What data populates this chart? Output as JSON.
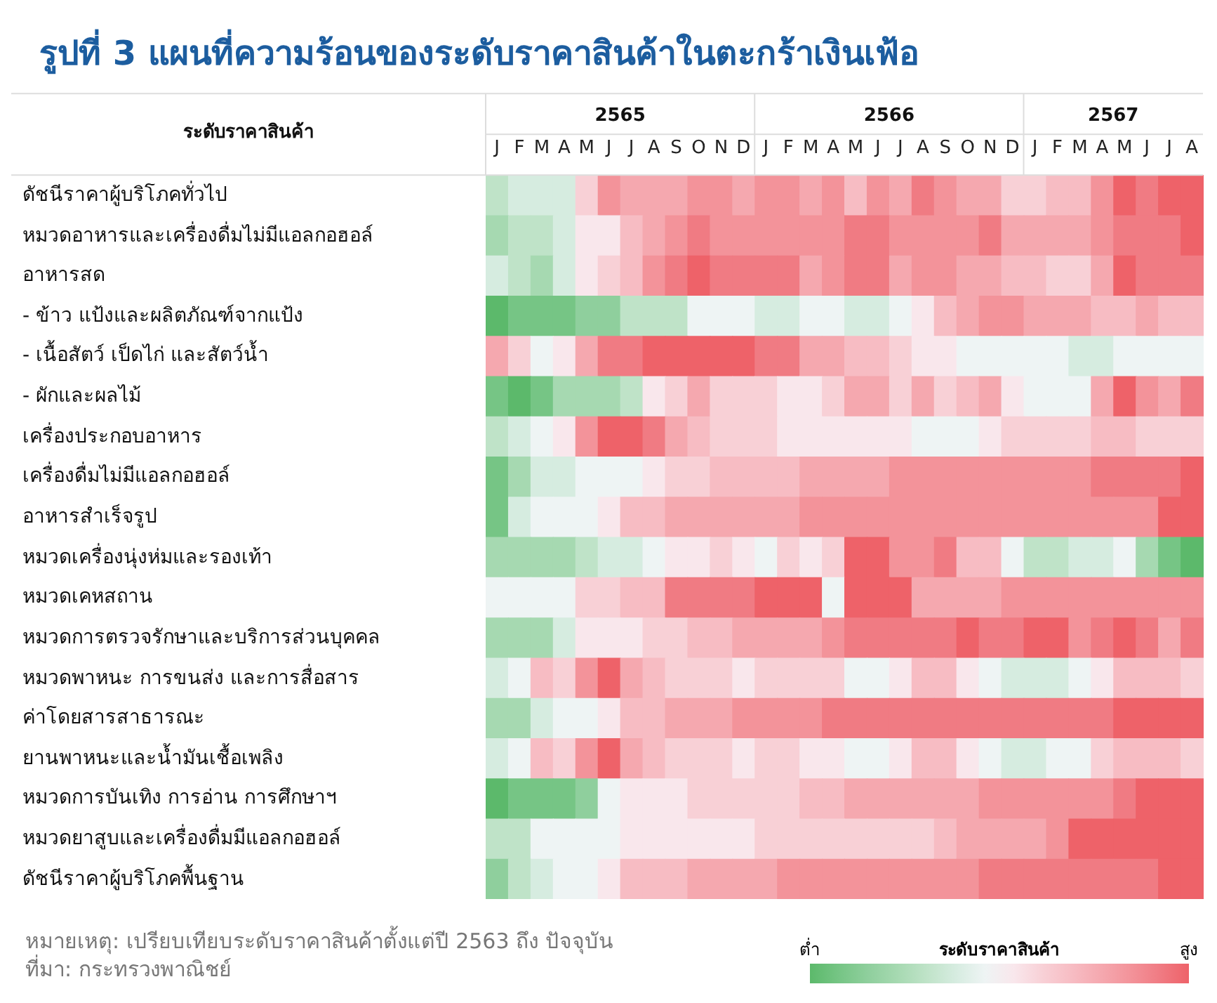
{
  "chart_data": {
    "type": "heatmap",
    "title": "รูปที่ 3 แผนที่ความร้อนของระดับราคาสินค้าในตะกร้าเงินเฟ้อ",
    "ylabel": "ระดับราคาสินค้า",
    "clabel": "ระดับราคาสินค้า",
    "categories": [
      "J",
      "F",
      "M",
      "A",
      "M",
      "J",
      "J",
      "A",
      "S",
      "O",
      "N",
      "D",
      "J",
      "F",
      "M",
      "A",
      "M",
      "J",
      "J",
      "A",
      "S",
      "O",
      "N",
      "D",
      "J",
      "F",
      "M",
      "A",
      "M",
      "J",
      "J",
      "A"
    ],
    "y_categories": [
      "ดัชนีราคาผู้บริโภคทั่วไป",
      "หมวดอาหารและเครื่องดื่มไม่มีแอลกอฮอล์",
      "อาหารสด",
      "- ข้าว แป้งและผลิตภัณฑ์จากแป้ง",
      "- เนื้อสัตว์ เป็ดไก่ และสัตว์น้ำ",
      "- ผักและผลไม้",
      "เครื่องประกอบอาหาร",
      "เครื่องดื่มไม่มีแอลกอฮอล์",
      "อาหารสำเร็จรูป",
      "หมวดเครื่องนุ่งห่มและรองเท้า",
      "หมวดเคหสถาน",
      "หมวดการตรวจรักษาและบริการส่วนบุคคล",
      "หมวดพาหนะ การขนส่ง และการสื่อสาร",
      "ค่าโดยสารสาธารณะ",
      "ยานพาหนะและน้ำมันเชื้อเพลิง",
      "หมวดการบันเทิง การอ่าน การศึกษาฯ",
      "หมวดยาสูบและเครื่องดื่มมีแอลกอฮอล์",
      "ดัชนีราคาผู้บริโภคพื้นฐาน"
    ],
    "cells": [
      [
        5,
        6,
        6,
        6,
        9,
        12,
        11,
        11,
        11,
        12,
        12,
        11,
        12,
        12,
        11,
        12,
        10,
        12,
        11,
        13,
        12,
        11,
        11,
        9,
        9,
        10,
        10,
        12,
        14,
        13,
        14,
        14
      ],
      [
        4,
        5,
        5,
        6,
        8,
        8,
        10,
        11,
        12,
        13,
        12,
        12,
        12,
        12,
        12,
        12,
        13,
        13,
        12,
        12,
        12,
        12,
        13,
        11,
        11,
        11,
        11,
        12,
        13,
        13,
        13,
        14
      ],
      [
        6,
        5,
        4,
        6,
        8,
        9,
        10,
        12,
        13,
        14,
        13,
        13,
        13,
        13,
        11,
        12,
        13,
        13,
        11,
        12,
        12,
        11,
        11,
        10,
        10,
        9,
        9,
        11,
        14,
        13,
        13,
        13
      ],
      [
        1,
        2,
        2,
        2,
        3,
        3,
        5,
        5,
        5,
        7,
        7,
        7,
        6,
        6,
        7,
        7,
        6,
        6,
        7,
        8,
        10,
        11,
        12,
        12,
        11,
        11,
        11,
        10,
        10,
        11,
        10,
        10
      ],
      [
        11,
        9,
        7,
        8,
        11,
        13,
        13,
        14,
        14,
        14,
        14,
        14,
        13,
        13,
        11,
        11,
        10,
        10,
        9,
        8,
        8,
        7,
        7,
        7,
        7,
        7,
        6,
        6,
        7,
        7,
        7,
        7
      ],
      [
        2,
        1,
        2,
        4,
        4,
        4,
        5,
        8,
        9,
        11,
        9,
        9,
        9,
        8,
        8,
        9,
        11,
        11,
        9,
        11,
        9,
        10,
        11,
        8,
        7,
        7,
        7,
        11,
        14,
        12,
        11,
        13
      ],
      [
        5,
        6,
        7,
        8,
        12,
        14,
        14,
        13,
        11,
        10,
        9,
        9,
        9,
        8,
        8,
        8,
        8,
        8,
        8,
        7,
        7,
        7,
        8,
        9,
        9,
        9,
        9,
        10,
        10,
        9,
        9,
        9
      ],
      [
        2,
        4,
        6,
        6,
        7,
        7,
        7,
        8,
        9,
        9,
        10,
        10,
        10,
        10,
        11,
        11,
        11,
        11,
        12,
        12,
        12,
        12,
        12,
        12,
        12,
        12,
        12,
        13,
        13,
        13,
        13,
        14
      ],
      [
        2,
        6,
        7,
        7,
        7,
        8,
        10,
        10,
        11,
        11,
        11,
        11,
        11,
        11,
        12,
        12,
        12,
        12,
        12,
        12,
        12,
        12,
        12,
        12,
        12,
        12,
        12,
        12,
        12,
        12,
        14,
        14
      ],
      [
        4,
        4,
        4,
        4,
        5,
        6,
        6,
        7,
        8,
        8,
        9,
        8,
        7,
        9,
        8,
        9,
        14,
        14,
        12,
        12,
        13,
        10,
        10,
        7,
        5,
        5,
        6,
        6,
        7,
        4,
        2,
        1
      ],
      [
        7,
        7,
        7,
        7,
        9,
        9,
        10,
        10,
        13,
        13,
        13,
        13,
        14,
        14,
        14,
        7,
        14,
        14,
        14,
        11,
        11,
        11,
        11,
        12,
        12,
        12,
        12,
        12,
        12,
        12,
        12,
        12
      ],
      [
        4,
        4,
        4,
        6,
        8,
        8,
        8,
        9,
        9,
        10,
        10,
        11,
        11,
        11,
        11,
        12,
        13,
        13,
        13,
        13,
        13,
        14,
        13,
        13,
        14,
        14,
        12,
        13,
        14,
        13,
        11,
        13
      ],
      [
        6,
        7,
        10,
        9,
        12,
        14,
        11,
        10,
        9,
        9,
        9,
        8,
        9,
        9,
        9,
        9,
        7,
        7,
        8,
        10,
        10,
        8,
        7,
        6,
        6,
        6,
        7,
        8,
        10,
        10,
        10,
        9
      ],
      [
        4,
        4,
        6,
        7,
        7,
        8,
        10,
        10,
        11,
        11,
        11,
        12,
        12,
        12,
        12,
        13,
        13,
        13,
        13,
        13,
        13,
        13,
        13,
        13,
        13,
        13,
        13,
        13,
        14,
        14,
        14,
        14
      ],
      [
        6,
        7,
        10,
        9,
        12,
        14,
        11,
        10,
        9,
        9,
        9,
        8,
        9,
        9,
        8,
        8,
        7,
        7,
        8,
        10,
        10,
        8,
        7,
        6,
        6,
        7,
        7,
        9,
        10,
        10,
        10,
        9
      ],
      [
        1,
        2,
        2,
        2,
        3,
        7,
        8,
        8,
        8,
        9,
        9,
        9,
        9,
        9,
        10,
        10,
        11,
        11,
        11,
        11,
        11,
        11,
        12,
        12,
        12,
        12,
        12,
        12,
        13,
        14,
        14,
        14
      ],
      [
        5,
        5,
        7,
        7,
        7,
        7,
        8,
        8,
        8,
        8,
        8,
        8,
        9,
        9,
        9,
        9,
        9,
        9,
        9,
        9,
        10,
        11,
        11,
        11,
        11,
        12,
        14,
        14,
        14,
        14,
        14,
        14
      ],
      [
        3,
        5,
        6,
        7,
        7,
        8,
        10,
        10,
        10,
        11,
        11,
        11,
        11,
        12,
        12,
        12,
        12,
        12,
        12,
        12,
        12,
        12,
        13,
        13,
        13,
        13,
        13,
        13,
        13,
        13,
        14,
        14
      ]
    ],
    "colors": [
      "#5cb96b",
      "#76c585",
      "#8fcf9d",
      "#a6d9b1",
      "#bfe3c8",
      "#d6ece0",
      "#eef4f4",
      "#f9e7ec",
      "#f8d0d6",
      "#f7bcc3",
      "#f5a8af",
      "#f3939a",
      "#f07b83",
      "#ee6269"
    ],
    "clim": [
      1,
      14
    ],
    "cticks": [
      {
        "value": 1,
        "label": "ต่ำ"
      },
      {
        "value": 14,
        "label": "สูง"
      }
    ],
    "annotations": [
      "2565",
      "2566",
      "2567",
      "หมายเหตุ: เปรียบเทียบระดับราคาสินค้าตั้งแต่ปี 2563 ถึง ปัจจุบัน",
      "ที่มา: กระทรวงพาณิชย์"
    ]
  }
}
